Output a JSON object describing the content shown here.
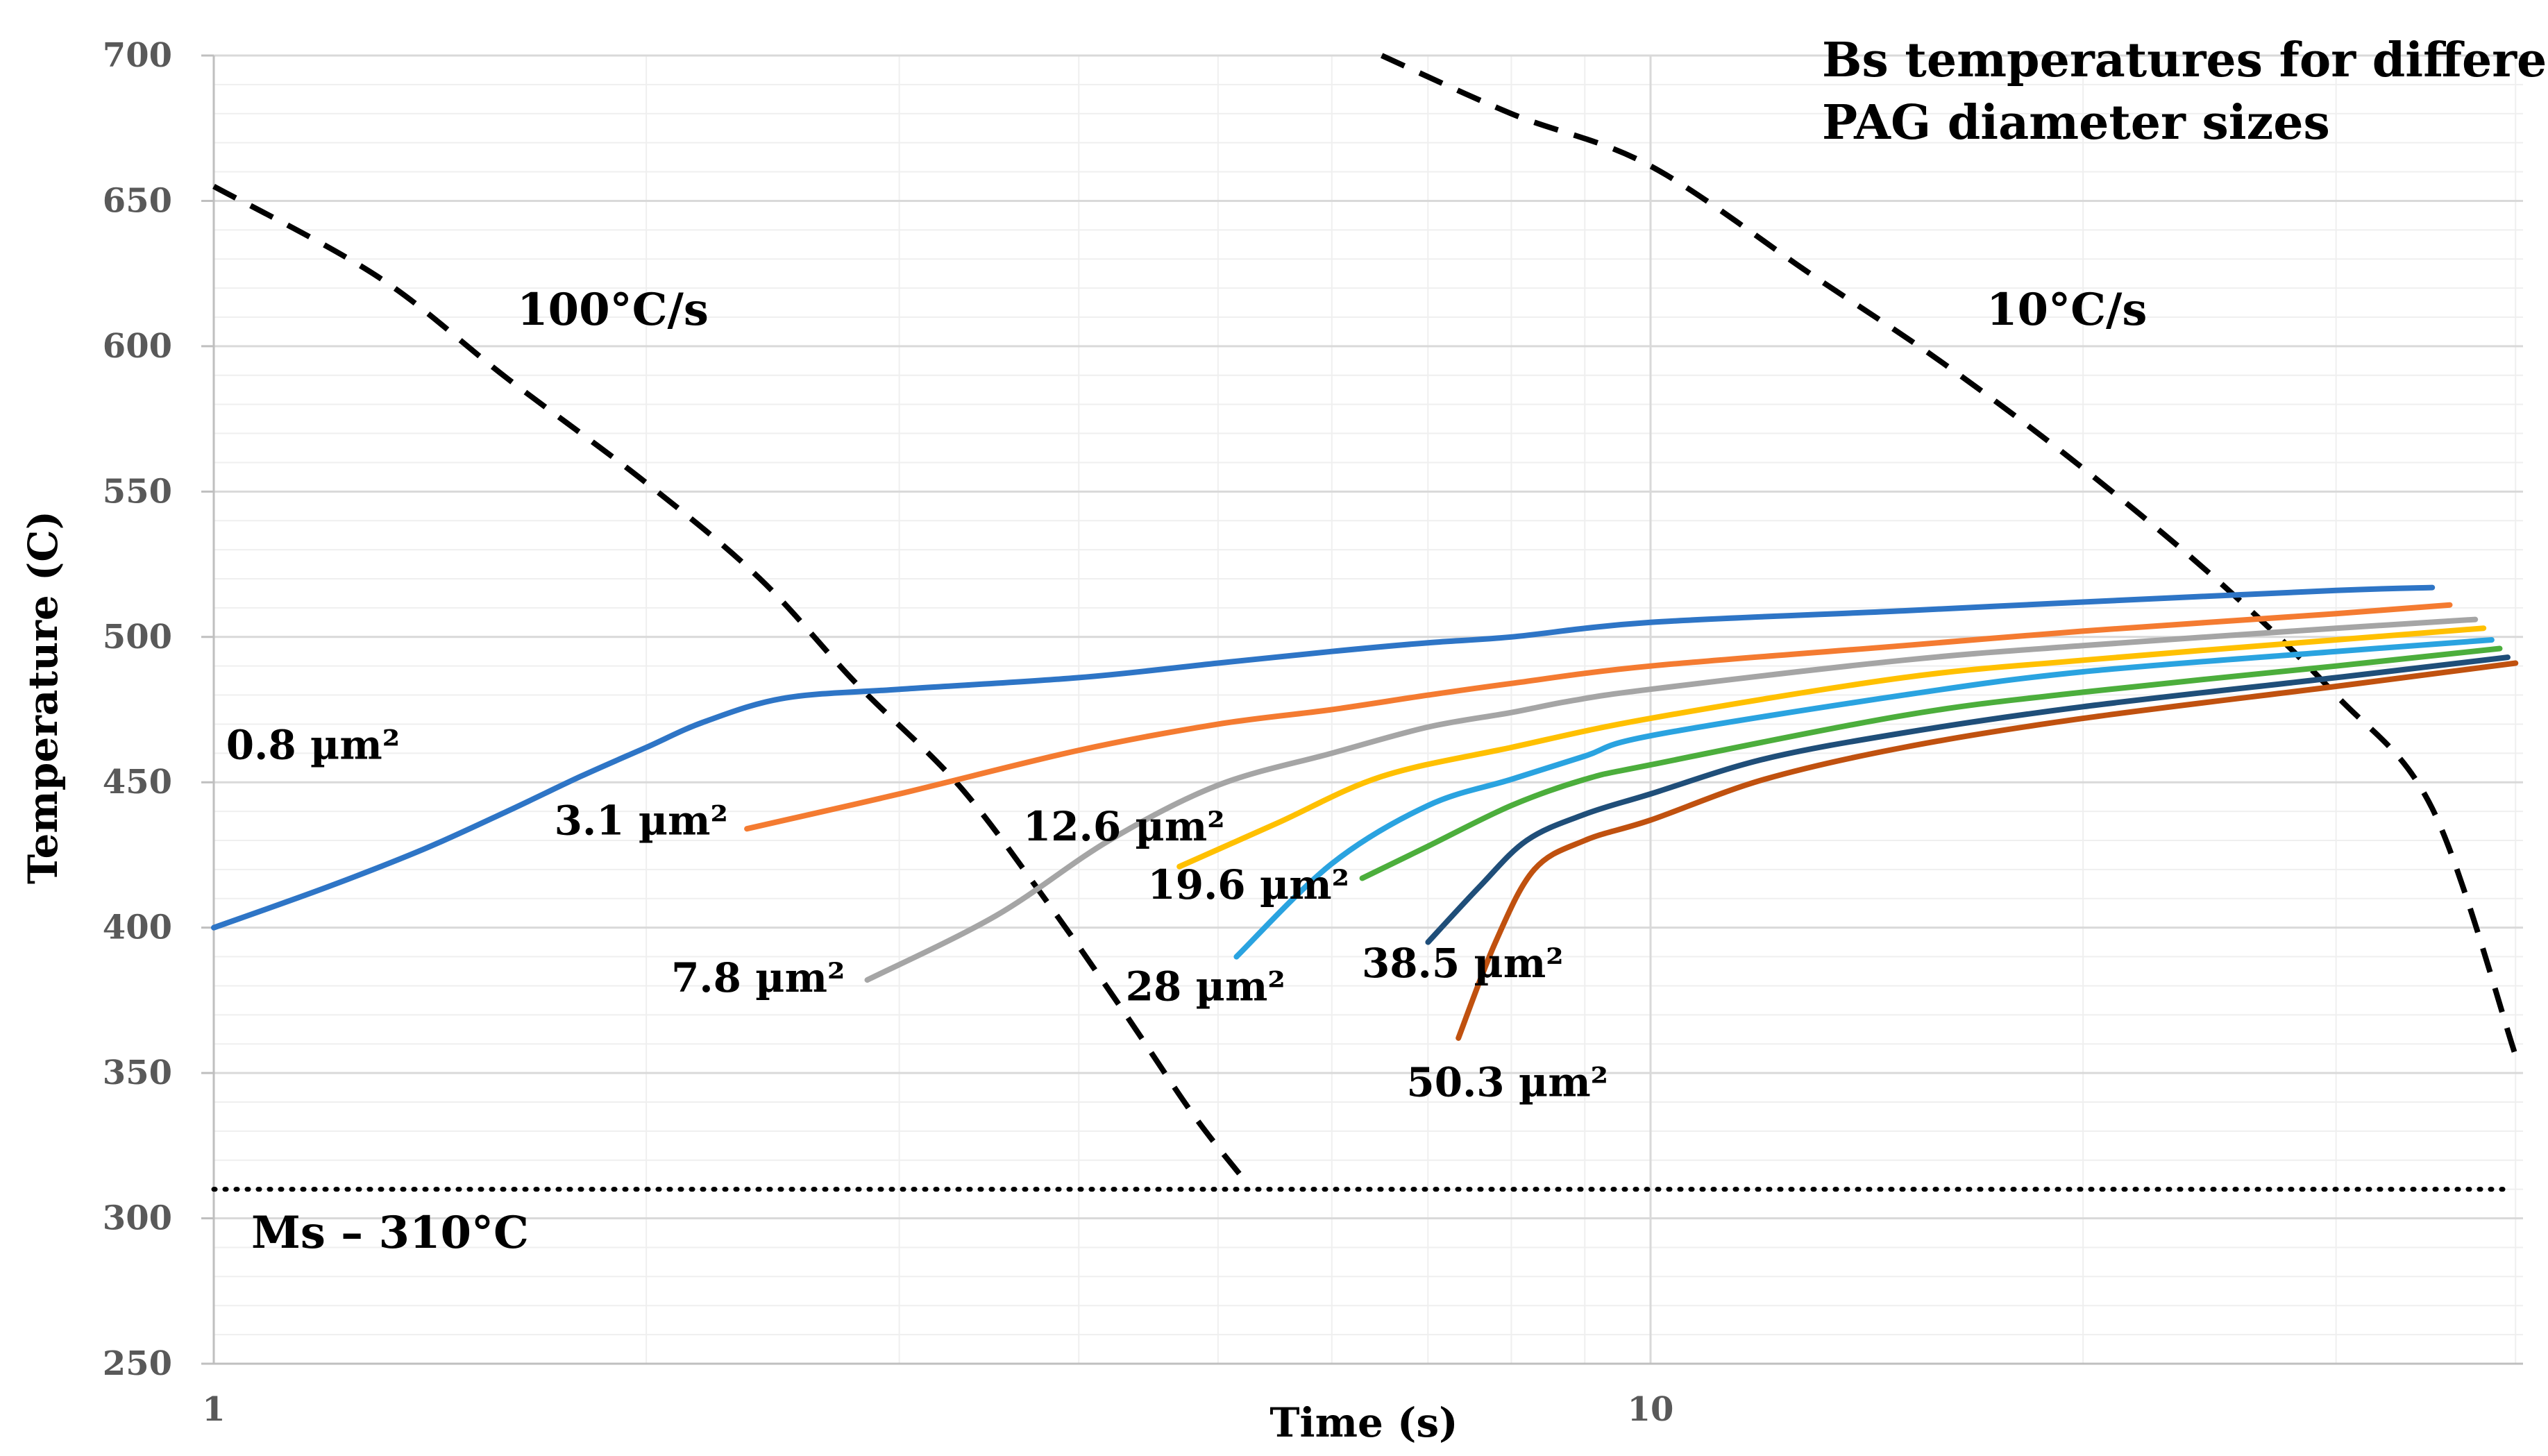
{
  "chart_data": {
    "type": "line",
    "title": "Bs temperatures for different PAG diameter sizes",
    "title_lines": [
      "Bs temperatures for different",
      "PAG diameter sizes"
    ],
    "xlabel": "Time (s)",
    "ylabel": "Temperature (C)",
    "x_scale": "log",
    "xlim": [
      1,
      40
    ],
    "ylim": [
      250,
      700
    ],
    "x_ticks": [
      1,
      10
    ],
    "x_tick_labels": [
      "1",
      "10"
    ],
    "y_ticks": [
      250,
      300,
      350,
      400,
      450,
      500,
      550,
      600,
      650,
      700
    ],
    "y_tick_labels": [
      "250",
      "300",
      "350",
      "400",
      "450",
      "500",
      "550",
      "600",
      "650",
      "700"
    ],
    "grid": true,
    "legend": "none (series labeled inline)",
    "series": [
      {
        "name": "0.8 µm²",
        "label": "0.8 µm²",
        "color": "#2E75C6",
        "x": [
          1,
          1.2,
          1.4,
          1.6,
          1.8,
          2.0,
          2.2,
          2.5,
          3,
          4,
          5,
          6,
          7,
          8,
          10,
          15,
          20,
          30,
          35
        ],
        "y": [
          400,
          414,
          427,
          440,
          452,
          462,
          471,
          479,
          482,
          486,
          491,
          495,
          498,
          500,
          505,
          509,
          512,
          516,
          517
        ]
      },
      {
        "name": "3.1 µm²",
        "label": "3.1 µm²",
        "color": "#F47B31",
        "x": [
          2.35,
          3,
          4,
          5,
          6,
          7,
          8,
          10,
          15,
          20,
          30,
          36
        ],
        "y": [
          434,
          446,
          461,
          470,
          475,
          480,
          484,
          490,
          497,
          502,
          508,
          511
        ]
      },
      {
        "name": "7.8 µm²",
        "label": "7.8 µm²",
        "color": "#A5A5A5",
        "x": [
          2.85,
          3.5,
          4.2,
          5,
          6,
          7,
          8,
          8.8,
          10,
          15,
          20,
          30,
          37.5
        ],
        "y": [
          382,
          404,
          430,
          449,
          460,
          469,
          474,
          478,
          482,
          492,
          497,
          503,
          506
        ]
      },
      {
        "name": "12.6 µm²",
        "label": "12.6 µm²",
        "color": "#FFC000",
        "x": [
          4.7,
          5.5,
          6.5,
          8,
          10,
          15,
          20,
          30,
          38
        ],
        "y": [
          421,
          436,
          452,
          462,
          472,
          486,
          492,
          499,
          503
        ]
      },
      {
        "name": "19.6 µm²",
        "label": "19.6 µm²",
        "color": "#2AA3E0",
        "x": [
          5.15,
          6,
          7,
          8,
          9,
          10,
          15,
          20,
          30,
          38.5
        ],
        "y": [
          390,
          422,
          442,
          451,
          459,
          466,
          480,
          488,
          495,
          499
        ]
      },
      {
        "name": "28 µm²",
        "label": "28 µm²",
        "color": "#4CAE3C",
        "x": [
          6.3,
          7,
          8,
          9,
          10,
          15,
          20,
          30,
          39
        ],
        "y": [
          417,
          428,
          442,
          451,
          456,
          473,
          481,
          490,
          496
        ]
      },
      {
        "name": "38.5 µm²",
        "label": "38.5 µm²",
        "color": "#1F4E79",
        "x": [
          7.0,
          7.6,
          8.2,
          9,
          10,
          12,
          15,
          20,
          30,
          39.5
        ],
        "y": [
          395,
          414,
          430,
          439,
          446,
          458,
          467,
          476,
          486,
          493
        ]
      },
      {
        "name": "50.3 µm²",
        "label": "50.3 µm²",
        "color": "#C0510F",
        "x": [
          7.35,
          7.8,
          8.3,
          9,
          10,
          12,
          15,
          20,
          30,
          40
        ],
        "y": [
          362,
          395,
          420,
          430,
          437,
          451,
          462,
          472,
          483,
          491
        ]
      }
    ],
    "cooling_curves": [
      {
        "name": "100°C/s",
        "label": "100°C/s",
        "x": [
          1,
          1.3,
          1.6,
          2.0,
          2.4,
          2.8,
          3.3,
          3.8,
          4.3,
          4.8,
          5.2
        ],
        "y": [
          655,
          624,
          589,
          553,
          520,
          484,
          449,
          409,
          371,
          336,
          314
        ]
      },
      {
        "name": "10°C/s",
        "label": "10°C/s",
        "x": [
          6.5,
          8,
          10,
          13,
          16,
          20,
          25,
          30,
          35,
          40
        ],
        "y": [
          700,
          680,
          662,
          624,
          594,
          558,
          518,
          480,
          441,
          356
        ]
      }
    ],
    "reference_line": {
      "label": "Ms – 310°C",
      "y": 310,
      "x_start": 1,
      "x_end": 39.5
    }
  }
}
